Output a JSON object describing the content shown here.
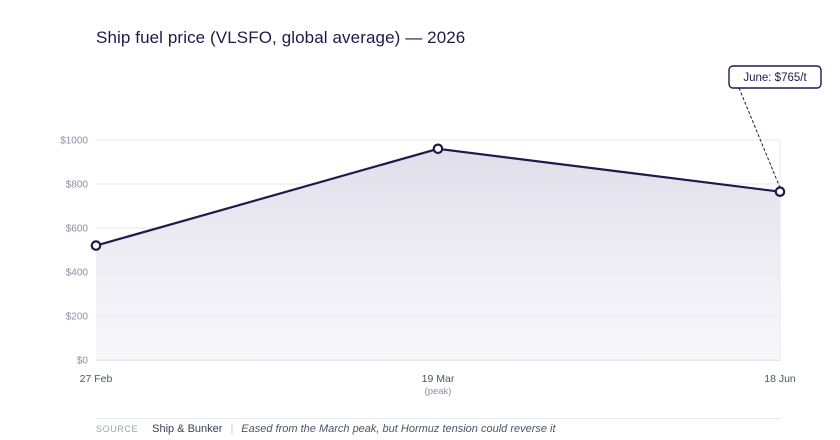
{
  "chart_data": {
    "type": "area",
    "title": "Ship fuel price (VLSFO, global average) — 2026",
    "x": [
      "27 Feb",
      "19 Mar",
      "18 Jun"
    ],
    "x_sublabels": [
      "",
      "(peak)",
      ""
    ],
    "values": [
      520,
      960,
      765
    ],
    "y_ticks": [
      "$0",
      "$200",
      "$400",
      "$600",
      "$800",
      "$1000"
    ],
    "y_tick_values": [
      0,
      200,
      400,
      600,
      800,
      1000
    ],
    "ylim": [
      0,
      1000
    ],
    "grid": true,
    "annotation": {
      "text": "June: $765/t",
      "point_index": 2
    },
    "colors": {
      "line": "#1e1b4b",
      "fill": "#e4e3ee",
      "grid": "#e5e7eb"
    }
  },
  "footer": {
    "source_label": "SOURCE",
    "source": "Ship & Bunker",
    "separator": "|",
    "note": "Eased from the March peak, but Hormuz tension could reverse it"
  }
}
